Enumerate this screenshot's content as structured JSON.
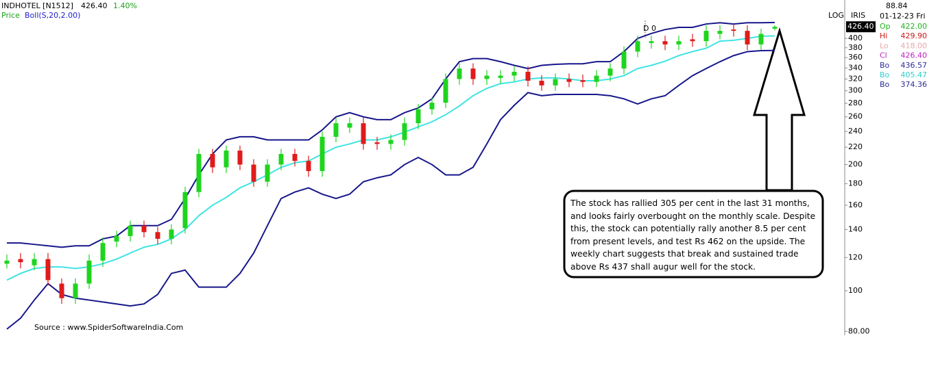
{
  "chart_data": {
    "type": "candlestick",
    "title": "INDHOTEL [N1512]",
    "price_text": "426.40",
    "change_text": "1.40%",
    "legend_price": "Price",
    "legend_indicator": "Boll(S,20,2.00)",
    "log_scale": true,
    "scale_label": "LOG",
    "indicator_label": "IRIS",
    "price_tag": "426.40",
    "marker": "D 0",
    "ylim": [
      78.3,
      494
    ],
    "yticks": [
      {
        "value": 80,
        "label": "80.00"
      },
      100,
      120,
      140,
      160,
      180,
      200,
      220,
      240,
      260,
      280,
      300,
      320,
      340,
      360,
      380,
      400
    ],
    "up_color": "#1fd41f",
    "down_color": "#e01b1b",
    "ohlc": {
      "open": [
        116,
        119,
        115,
        119,
        104,
        96,
        104,
        118,
        131,
        135,
        143,
        138,
        133,
        141,
        172,
        212,
        197,
        216,
        200,
        182,
        200,
        212,
        204,
        193,
        233,
        245,
        251,
        226,
        224,
        229,
        251,
        271,
        281,
        320,
        339,
        320,
        322,
        326,
        333,
        317,
        309,
        320,
        318,
        315,
        326,
        339,
        372,
        390,
        394,
        387,
        398,
        394,
        410,
        420,
        417,
        387,
        422
      ],
      "high": [
        122,
        123,
        123,
        123,
        107,
        107,
        122,
        134,
        139,
        147,
        147,
        142,
        144,
        177,
        218,
        218,
        222,
        222,
        206,
        206,
        218,
        218,
        210,
        240,
        259,
        259,
        259,
        233,
        236,
        259,
        279,
        289,
        330,
        349,
        349,
        336,
        336,
        343,
        343,
        327,
        330,
        330,
        328,
        336,
        349,
        383,
        406,
        406,
        406,
        406,
        410,
        430,
        430,
        433,
        430,
        422,
        429.9
      ],
      "low": [
        113,
        113,
        112,
        103,
        93,
        93,
        101,
        114,
        127,
        131,
        134,
        129,
        129,
        137,
        167,
        191,
        191,
        194,
        177,
        177,
        194,
        198,
        187,
        187,
        226,
        238,
        217,
        217,
        217,
        222,
        243,
        263,
        273,
        310,
        310,
        310,
        312,
        316,
        307,
        300,
        300,
        306,
        306,
        306,
        316,
        329,
        361,
        378,
        375,
        375,
        382,
        382,
        398,
        404,
        375,
        375,
        418
      ],
      "close": [
        118,
        117,
        119,
        106,
        96,
        104,
        118,
        130,
        135,
        143,
        138,
        133,
        140,
        172,
        212,
        197,
        216,
        200,
        182,
        200,
        212,
        204,
        193,
        233,
        251,
        251,
        224,
        224,
        229,
        251,
        271,
        281,
        320,
        339,
        320,
        326,
        326,
        333,
        317,
        309,
        320,
        315,
        315,
        326,
        339,
        372,
        394,
        394,
        387,
        394,
        394,
        417,
        417,
        417,
        387,
        410,
        426.4
      ]
    },
    "series": [
      {
        "color": "#16168a",
        "values": [
          130,
          130,
          129,
          128,
          127,
          128,
          128,
          133,
          135,
          143,
          143,
          143,
          148,
          166,
          189,
          212,
          229,
          233,
          233,
          229,
          229,
          229,
          229,
          242,
          260,
          266,
          260,
          256,
          256,
          266,
          273,
          287,
          320,
          352,
          358,
          358,
          352,
          345,
          339,
          345,
          347,
          348,
          348,
          352,
          352,
          372,
          400,
          411,
          420,
          425,
          425,
          433,
          436,
          433,
          436,
          436,
          436.57
        ]
      },
      {
        "color": "#3fe3e3",
        "values": [
          106,
          110,
          113,
          114,
          114,
          113,
          114,
          116,
          119,
          123,
          127,
          129,
          133,
          140,
          151,
          160,
          167,
          176,
          182,
          189,
          197,
          202,
          204,
          212,
          220,
          224,
          229,
          229,
          233,
          239,
          246,
          253,
          263,
          276,
          292,
          304,
          312,
          315,
          320,
          322,
          322,
          320,
          317,
          317,
          320,
          326,
          339,
          345,
          353,
          364,
          372,
          379,
          394,
          396,
          400,
          405,
          405.47
        ]
      },
      {
        "color": "#16168a",
        "values": [
          81,
          86,
          95,
          104,
          98,
          96,
          95,
          94,
          93,
          92,
          93,
          98,
          110,
          112,
          102,
          102,
          102,
          110,
          123,
          143,
          166,
          172,
          176,
          170,
          166,
          170,
          182,
          186,
          189,
          200,
          208,
          200,
          189,
          189,
          197,
          224,
          256,
          277,
          297,
          292,
          294,
          294,
          294,
          294,
          292,
          287,
          279,
          287,
          292,
          309,
          326,
          339,
          352,
          364,
          372,
          374,
          374.36
        ]
      }
    ],
    "annotation": "The stock has rallied 305 per cent in the last 31 months, and looks fairly overbought on the monthly scale. Despite this, the stock can potentially rally another 8.5 per cent from present levels, and test Rs 462 on the upside. The weekly chart suggests that break and sustained trade above Rs 437 shall augur well for the stock.",
    "source": "Source : www.SpiderSoftwareIndia.Com",
    "panel": {
      "top": "88.84",
      "date": "01-12-23 Fri",
      "rows": [
        {
          "label": "Op",
          "value": "422.00",
          "color": "#1fb41f"
        },
        {
          "label": "Hi",
          "value": "429.90",
          "color": "#c81818"
        },
        {
          "label": "Lo",
          "value": "418.00",
          "color": "#e8a8a8"
        },
        {
          "label": "Cl",
          "value": "426.40",
          "color": "#c020c0"
        },
        {
          "label": "Bo",
          "value": "436.57",
          "color": "#2a2a9a"
        },
        {
          "label": "Bo",
          "value": "405.47",
          "color": "#30cccc"
        },
        {
          "label": "Bo",
          "value": "374.36",
          "color": "#2a2a9a"
        }
      ]
    }
  }
}
